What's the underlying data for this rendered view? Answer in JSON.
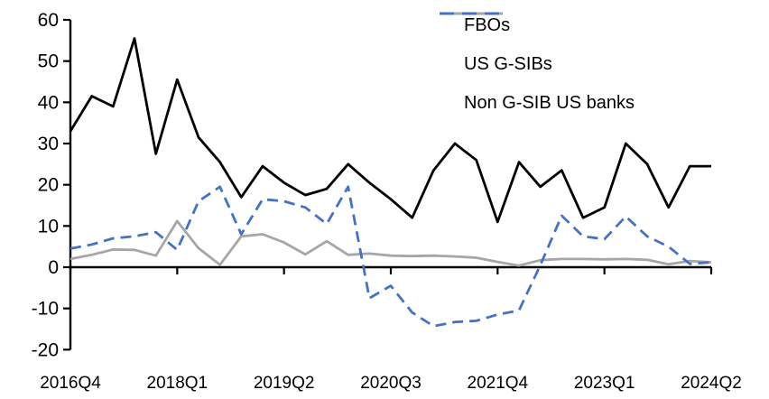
{
  "chart_data": {
    "type": "line",
    "title": "",
    "categories": [
      "2016Q4",
      "2017Q1",
      "2017Q2",
      "2017Q3",
      "2017Q4",
      "2018Q1",
      "2018Q2",
      "2018Q3",
      "2018Q4",
      "2019Q1",
      "2019Q2",
      "2019Q3",
      "2019Q4",
      "2020Q1",
      "2020Q2",
      "2020Q3",
      "2020Q4",
      "2021Q1",
      "2021Q2",
      "2021Q3",
      "2021Q4",
      "2022Q1",
      "2022Q2",
      "2022Q3",
      "2022Q4",
      "2023Q1",
      "2023Q2",
      "2023Q3",
      "2023Q4",
      "2024Q1",
      "2024Q2"
    ],
    "x_tick_labels": [
      "2016Q4",
      "2018Q1",
      "2019Q2",
      "2020Q3",
      "2021Q4",
      "2023Q1",
      "2024Q2"
    ],
    "x_tick_indices": [
      0,
      5,
      10,
      15,
      20,
      25,
      30
    ],
    "y_ticks": [
      60,
      50,
      40,
      30,
      20,
      10,
      0,
      -10,
      -20
    ],
    "ylim": [
      -20,
      60
    ],
    "grid": false,
    "legend_position": "top-right-inside",
    "axis_color": "#000000",
    "series": [
      {
        "name": "FBOs",
        "color": "#000000",
        "style": "solid",
        "values": [
          33,
          41.5,
          39,
          55.5,
          27.5,
          45.5,
          31.5,
          25.5,
          17,
          24.5,
          20.5,
          17.5,
          19,
          25,
          20.5,
          16.5,
          12,
          23.5,
          30,
          26,
          11,
          25.5,
          19.5,
          23.5,
          12,
          14.5,
          30,
          25,
          14.5,
          24.5,
          24.5
        ]
      },
      {
        "name": "US G-SIBs",
        "color": "#a6a6a6",
        "style": "solid",
        "values": [
          2,
          3,
          4.3,
          4.2,
          2.8,
          11.2,
          4.6,
          0.6,
          7.5,
          8,
          6,
          3.1,
          6.3,
          3,
          3.3,
          2.8,
          2.7,
          2.8,
          2.6,
          2.3,
          1.3,
          0.4,
          1.7,
          2,
          2,
          1.9,
          2,
          1.8,
          0.7,
          1.5,
          1.2
        ]
      },
      {
        "name": "Non G-SIB US banks",
        "color": "#4472c4",
        "style": "dashed",
        "values": [
          4.5,
          5.5,
          7,
          7.5,
          8.5,
          4.2,
          16,
          19.5,
          8,
          16.5,
          16,
          14.5,
          10.5,
          19.5,
          -7.5,
          -4.5,
          -11,
          -14.3,
          -13.3,
          -13,
          -11.5,
          -10.5,
          0.5,
          12.5,
          7.5,
          6.8,
          12.3,
          7.5,
          5,
          0.8,
          1.2
        ]
      }
    ]
  }
}
